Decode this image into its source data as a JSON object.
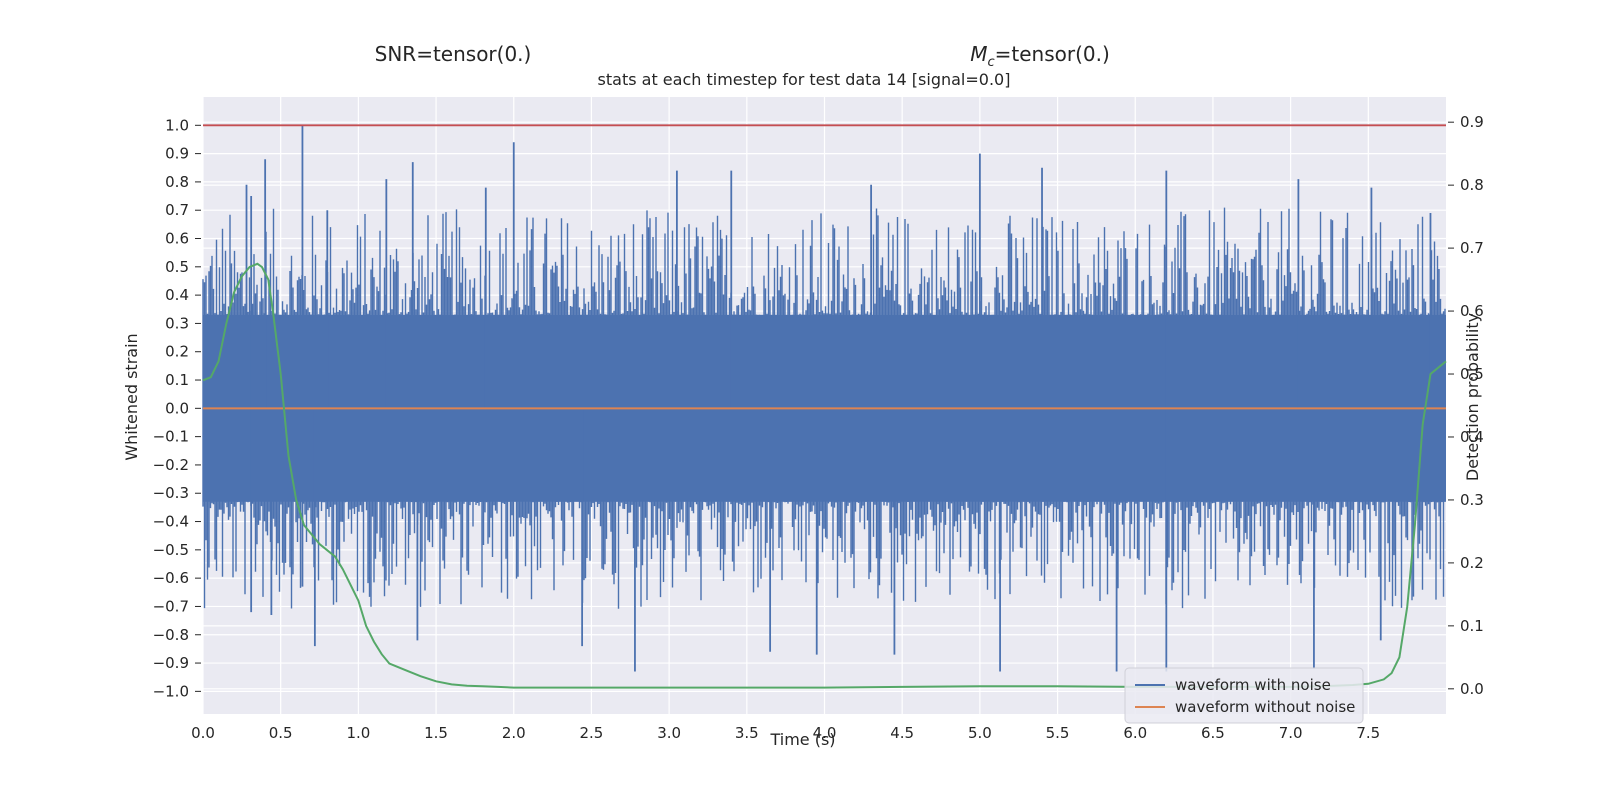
{
  "header": {
    "snr_label": "SNR=tensor(0.)",
    "mc_prefix": "M",
    "mc_subscript": "c",
    "mc_suffix": "=tensor(0.)"
  },
  "chart_data": {
    "type": "line",
    "title": "stats at each timestep for test data 14 [signal=0.0]",
    "xlabel": "Time (s)",
    "ylabel": "Whitened strain",
    "y2label": "Detection probability",
    "xlim": [
      0.0,
      8.0
    ],
    "ylim": [
      -1.08,
      1.1
    ],
    "y2lim": [
      -0.04,
      0.94
    ],
    "grid": true,
    "legend_position": "lower-right",
    "x_ticks": [
      "0.0",
      "0.5",
      "1.0",
      "1.5",
      "2.0",
      "2.5",
      "3.0",
      "3.5",
      "4.0",
      "4.5",
      "5.0",
      "5.5",
      "6.0",
      "6.5",
      "7.0",
      "7.5"
    ],
    "y_ticks": [
      "1.0",
      "0.9",
      "0.8",
      "0.7",
      "0.6",
      "0.5",
      "0.4",
      "0.3",
      "0.2",
      "0.1",
      "0.0",
      "−0.1",
      "−0.2",
      "−0.3",
      "−0.4",
      "−0.5",
      "−0.6",
      "−0.7",
      "−0.8",
      "−0.9",
      "−1.0"
    ],
    "y2_ticks": [
      "0.9",
      "0.8",
      "0.7",
      "0.6",
      "0.5",
      "0.4",
      "0.3",
      "0.2",
      "0.1",
      "0.0"
    ],
    "hline": {
      "y": 1.0,
      "color": "#c44e52"
    },
    "colors": {
      "noise": "#4c72b0",
      "clean": "#dd8452",
      "prob": "#55a868",
      "background": "#eaeaf2"
    },
    "series": [
      {
        "name": "waveform with noise",
        "axis": "left",
        "color": "#4c72b0",
        "typical_envelope": [
          -0.33,
          0.33
        ],
        "peaks": [
          {
            "x": 0.28,
            "y": 0.79
          },
          {
            "x": 0.31,
            "y": 0.75
          },
          {
            "x": 0.31,
            "y": -0.72
          },
          {
            "x": 0.4,
            "y": 0.88
          },
          {
            "x": 0.44,
            "y": -0.73
          },
          {
            "x": 0.64,
            "y": 1.0
          },
          {
            "x": 0.64,
            "y": -0.63
          },
          {
            "x": 0.72,
            "y": -0.84
          },
          {
            "x": 0.8,
            "y": 0.7
          },
          {
            "x": 1.18,
            "y": 0.81
          },
          {
            "x": 1.35,
            "y": 0.87
          },
          {
            "x": 1.38,
            "y": -0.82
          },
          {
            "x": 1.82,
            "y": 0.78
          },
          {
            "x": 2.0,
            "y": 0.94
          },
          {
            "x": 2.44,
            "y": -0.84
          },
          {
            "x": 2.78,
            "y": -0.93
          },
          {
            "x": 3.05,
            "y": 0.84
          },
          {
            "x": 3.4,
            "y": 0.84
          },
          {
            "x": 3.65,
            "y": -0.86
          },
          {
            "x": 3.95,
            "y": -0.87
          },
          {
            "x": 4.3,
            "y": 0.79
          },
          {
            "x": 4.45,
            "y": -0.87
          },
          {
            "x": 5.0,
            "y": 0.9
          },
          {
            "x": 5.13,
            "y": -0.93
          },
          {
            "x": 5.4,
            "y": 0.85
          },
          {
            "x": 5.88,
            "y": -0.93
          },
          {
            "x": 6.2,
            "y": 0.84
          },
          {
            "x": 6.2,
            "y": -0.93
          },
          {
            "x": 7.05,
            "y": 0.81
          },
          {
            "x": 7.15,
            "y": -0.92
          },
          {
            "x": 7.52,
            "y": 0.78
          },
          {
            "x": 7.58,
            "y": -0.82
          },
          {
            "x": 7.9,
            "y": 0.69
          }
        ]
      },
      {
        "name": "waveform without noise",
        "axis": "left",
        "color": "#dd8452",
        "x": [
          0.0,
          8.0
        ],
        "y": [
          0.0,
          0.0
        ]
      },
      {
        "axis": "right",
        "color": "#55a868",
        "x": [
          0.0,
          0.05,
          0.1,
          0.15,
          0.2,
          0.25,
          0.3,
          0.35,
          0.38,
          0.42,
          0.45,
          0.5,
          0.55,
          0.6,
          0.65,
          0.7,
          0.75,
          0.8,
          0.85,
          0.9,
          0.95,
          1.0,
          1.05,
          1.1,
          1.15,
          1.2,
          1.3,
          1.4,
          1.5,
          1.6,
          1.7,
          1.8,
          1.9,
          2.0,
          2.2,
          2.5,
          3.0,
          3.5,
          4.0,
          4.5,
          5.0,
          5.5,
          6.0,
          6.5,
          7.0,
          7.2,
          7.4,
          7.5,
          7.6,
          7.65,
          7.7,
          7.75,
          7.8,
          7.85,
          7.9,
          7.95,
          8.0
        ],
        "y": [
          0.49,
          0.495,
          0.52,
          0.58,
          0.63,
          0.655,
          0.67,
          0.675,
          0.67,
          0.65,
          0.6,
          0.5,
          0.37,
          0.3,
          0.26,
          0.245,
          0.23,
          0.22,
          0.21,
          0.19,
          0.165,
          0.14,
          0.1,
          0.075,
          0.055,
          0.04,
          0.03,
          0.02,
          0.012,
          0.007,
          0.005,
          0.004,
          0.003,
          0.002,
          0.002,
          0.002,
          0.002,
          0.002,
          0.002,
          0.003,
          0.004,
          0.004,
          0.003,
          0.003,
          0.003,
          0.004,
          0.006,
          0.008,
          0.015,
          0.025,
          0.05,
          0.13,
          0.26,
          0.42,
          0.5,
          0.51,
          0.52
        ]
      }
    ]
  }
}
